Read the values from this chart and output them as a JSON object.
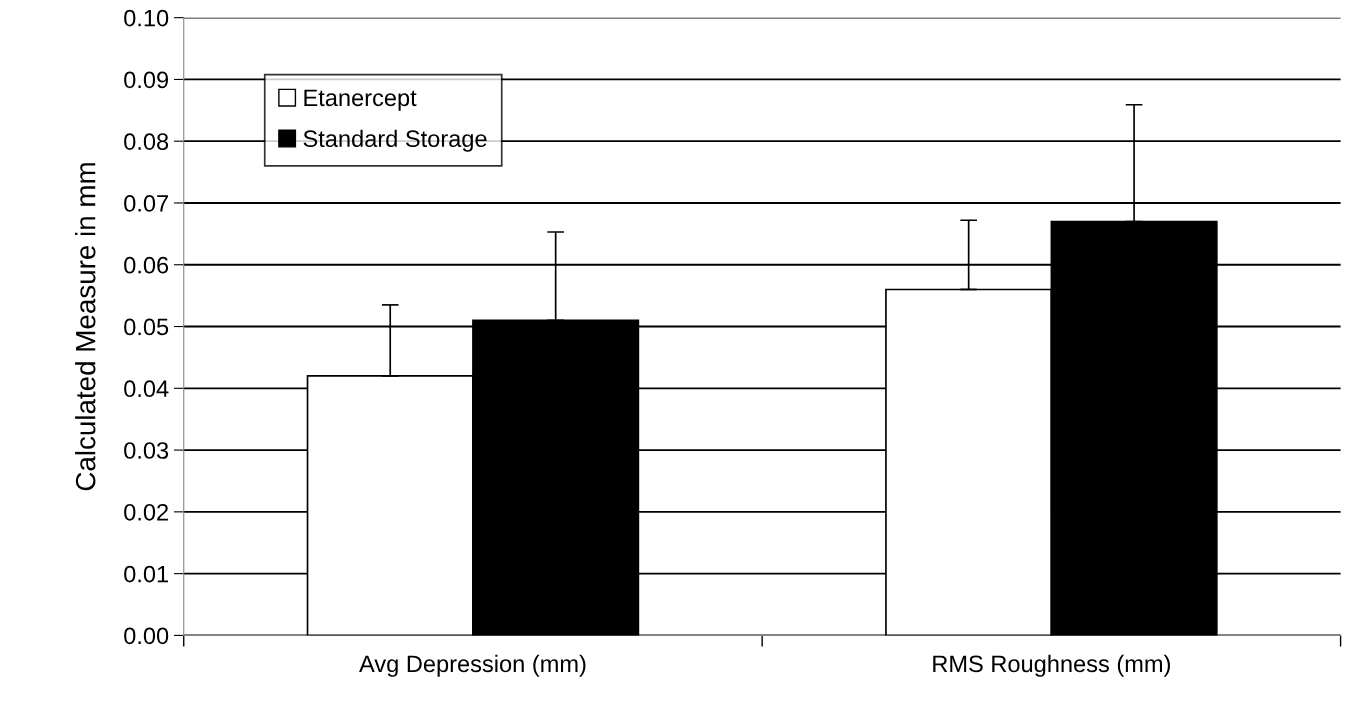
{
  "chart_data": {
    "type": "bar",
    "ylabel": "Calculated Measure in mm",
    "categories": [
      "Avg Depression (mm)",
      "RMS Roughness (mm)"
    ],
    "series": [
      {
        "name": "Etanercept",
        "color": "#ffffff",
        "values": [
          0.042,
          0.056
        ],
        "errors": [
          [
            0.042,
            0.0535
          ],
          [
            0.056,
            0.0672
          ]
        ]
      },
      {
        "name": "Standard Storage",
        "color": "#000000",
        "values": [
          0.051,
          0.067
        ],
        "errors": [
          [
            0.051,
            0.0653
          ],
          [
            0.067,
            0.0859
          ]
        ]
      }
    ],
    "ylim": [
      0,
      0.1
    ],
    "yticks": [
      {
        "value": 0,
        "label": "0.00"
      },
      {
        "value": 0.01,
        "label": "0.01"
      },
      {
        "value": 0.02,
        "label": "0.02"
      },
      {
        "value": 0.03,
        "label": "0.03"
      },
      {
        "value": 0.04,
        "label": "0.04"
      },
      {
        "value": 0.05,
        "label": "0.05"
      },
      {
        "value": 0.06,
        "label": "0.06"
      },
      {
        "value": 0.07,
        "label": "0.07"
      },
      {
        "value": 0.08,
        "label": "0.08"
      },
      {
        "value": 0.09,
        "label": "0.09"
      },
      {
        "value": 0.1,
        "label": "0.10"
      }
    ],
    "grid": "y",
    "legend": "top left"
  }
}
